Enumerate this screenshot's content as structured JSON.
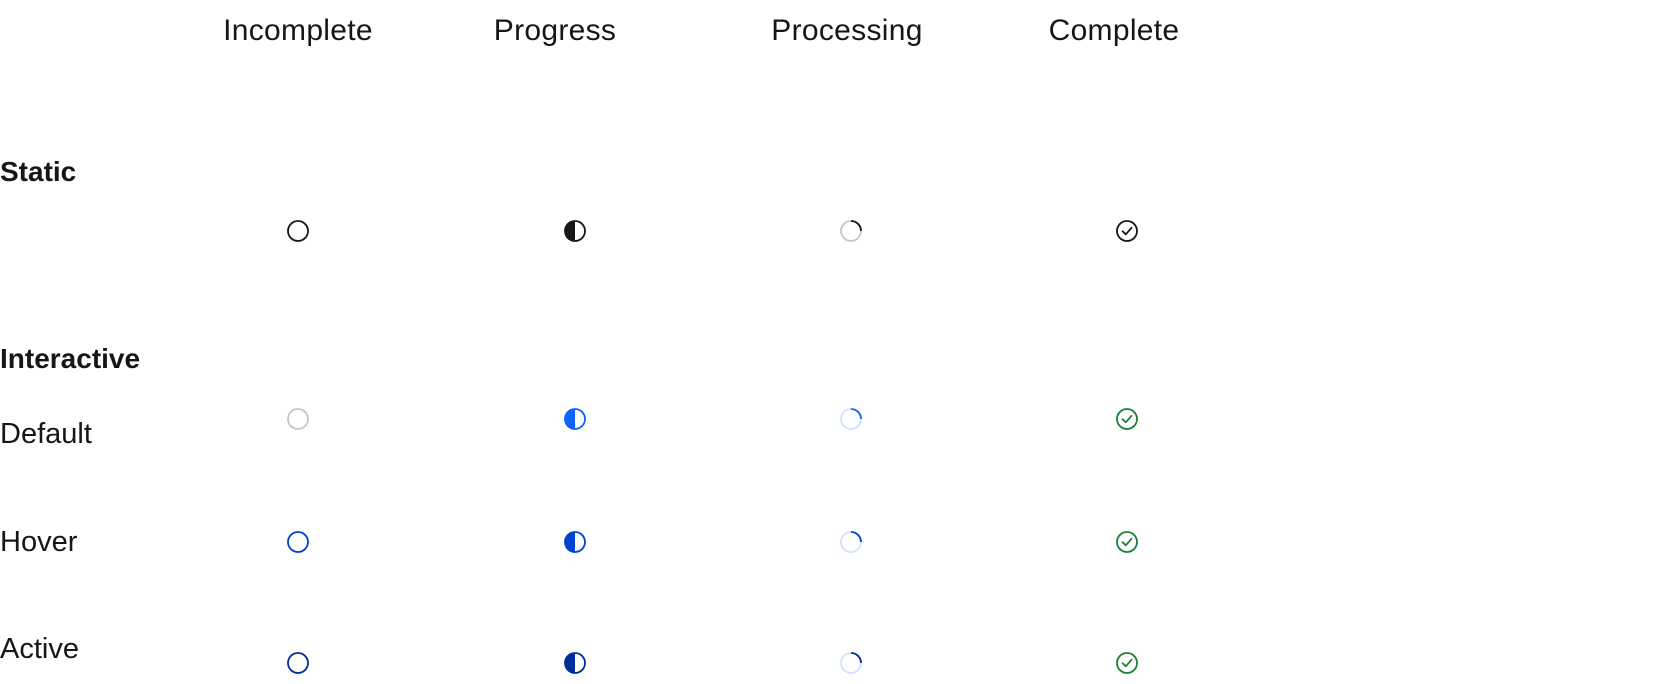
{
  "columns": [
    "Incomplete",
    "Progress",
    "Processing",
    "Complete"
  ],
  "sections": {
    "static": "Static",
    "interactive": "Interactive"
  },
  "rows": [
    {
      "label": "",
      "state": "static",
      "colors": {
        "incomplete": "#161616",
        "progress": "#161616",
        "processing_track": "#c6c6c6",
        "processing_arc": "#161616",
        "complete": "#161616"
      }
    },
    {
      "label": "Default",
      "state": "default",
      "colors": {
        "incomplete": "#c6c6c6",
        "progress": "#0f62fe",
        "processing_track": "#d0e2ff",
        "processing_arc": "#0f62fe",
        "complete": "#198038"
      }
    },
    {
      "label": "Hover",
      "state": "hover",
      "colors": {
        "incomplete": "#0043ce",
        "progress": "#0043ce",
        "processing_track": "#d0e2ff",
        "processing_arc": "#0043ce",
        "complete": "#198038"
      }
    },
    {
      "label": "Active",
      "state": "active",
      "colors": {
        "incomplete": "#002d9c",
        "progress": "#002d9c",
        "processing_track": "#d0e2ff",
        "processing_arc": "#002d9c",
        "complete": "#198038"
      }
    }
  ],
  "icons": [
    "circle-outline-icon",
    "half-filled-circle-icon",
    "processing-arc-icon",
    "checkmark-circle-icon"
  ]
}
